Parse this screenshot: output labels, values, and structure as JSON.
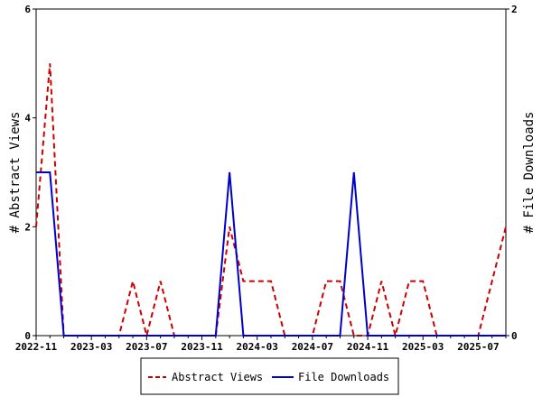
{
  "chart_data": {
    "type": "line",
    "x": [
      "2022-11",
      "2022-12",
      "2023-01",
      "2023-02",
      "2023-03",
      "2023-04",
      "2023-05",
      "2023-06",
      "2023-07",
      "2023-08",
      "2023-09",
      "2023-10",
      "2023-11",
      "2023-12",
      "2024-01",
      "2024-02",
      "2024-03",
      "2024-04",
      "2024-05",
      "2024-06",
      "2024-07",
      "2024-08",
      "2024-09",
      "2024-10",
      "2024-11",
      "2024-12",
      "2025-01",
      "2025-02",
      "2025-03",
      "2025-04",
      "2025-05",
      "2025-06",
      "2025-07",
      "2025-08",
      "2025-09"
    ],
    "x_ticks": [
      "2022-11",
      "2023-03",
      "2023-07",
      "2023-11",
      "2024-03",
      "2024-07",
      "2024-11",
      "2025-03",
      "2025-07"
    ],
    "series": [
      {
        "name": "Abstract Views",
        "axis": "left",
        "color": "#cc0000",
        "dash": "dashed",
        "values": [
          2,
          5,
          0,
          0,
          0,
          0,
          0,
          1,
          0,
          1,
          0,
          0,
          0,
          0,
          2,
          1,
          1,
          1,
          0,
          0,
          0,
          1,
          1,
          0,
          0,
          1,
          0,
          1,
          1,
          0,
          0,
          0,
          0,
          1,
          2
        ]
      },
      {
        "name": "File Downloads",
        "axis": "right",
        "color": "#0000cc",
        "dash": "solid",
        "values": [
          1,
          1,
          0,
          0,
          0,
          0,
          0,
          0,
          0,
          0,
          0,
          0,
          0,
          0,
          1,
          0,
          0,
          0,
          0,
          0,
          0,
          0,
          0,
          1,
          0,
          0,
          0,
          0,
          0,
          0,
          0,
          0,
          0,
          0,
          0
        ]
      }
    ],
    "ylabel_left": "# Abstract Views",
    "ylabel_right": "# File Downloads",
    "ylim_left": [
      0,
      6
    ],
    "yticks_left": [
      0,
      2,
      4,
      6
    ],
    "ylim_right": [
      0,
      2
    ],
    "yticks_right": [
      0,
      2
    ],
    "grid": false,
    "legend_position": "bottom"
  }
}
